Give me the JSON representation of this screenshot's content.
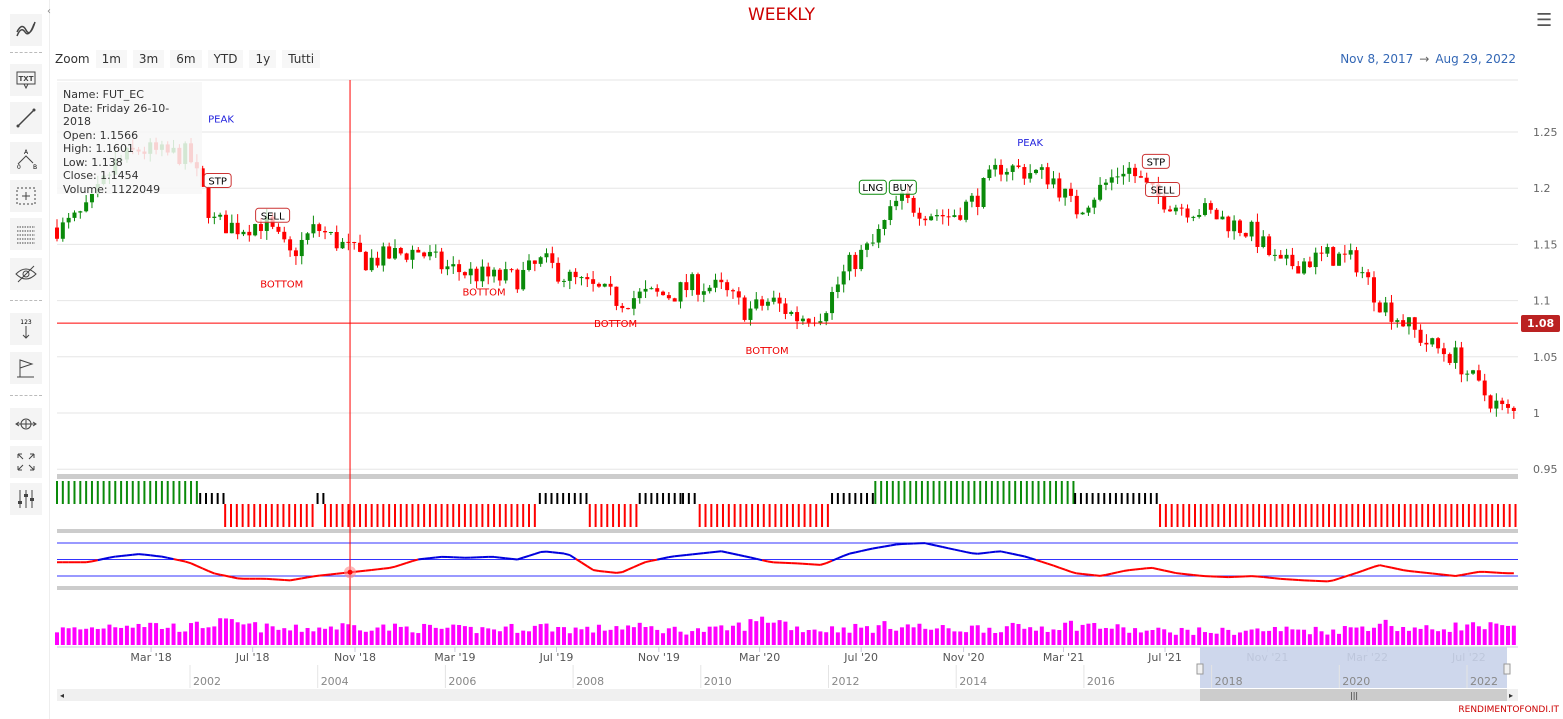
{
  "title": "WEEKLY",
  "toolbar": {
    "icons": [
      "indicators-icon",
      "text-annotation-icon",
      "line-icon",
      "elliott-wave-icon",
      "measure-icon",
      "fibonacci-icon",
      "hide-annotations-icon",
      "vertical-counter-icon",
      "flag-icon",
      "zoom-pan-icon",
      "fullscreen-icon",
      "settings-icon"
    ]
  },
  "zoom": {
    "label": "Zoom",
    "buttons": [
      "1m",
      "3m",
      "6m",
      "YTD",
      "1y",
      "Tutti"
    ]
  },
  "range": {
    "from": "Nov 8, 2017",
    "arrow": "→",
    "to": "Aug 29, 2022"
  },
  "tooltip": {
    "name": "Name: FUT_EC",
    "date": "Date: Friday 26-10-2018",
    "open": "Open: 1.1566",
    "high": "High: 1.1601",
    "low": "Low: 1.138",
    "close": "Close: 1.1454",
    "volume": "Volume: 1122049"
  },
  "crosshair": {
    "date": "2018-10-26",
    "price": 1.08,
    "price_label": "1.08"
  },
  "credit": "RENDIMENTOFONDI.IT",
  "colors": {
    "up": "#0a8a0a",
    "down": "#ff0000",
    "title": "#cc0000",
    "osc_high": "#0000dd",
    "osc_low": "#ff0000",
    "volume": "#ff00ff",
    "navigator_mask": "#c9d3ea"
  },
  "chart_data": {
    "type": "candlestick",
    "ylim": [
      0.95,
      1.27
    ],
    "yticks": [
      "0.95",
      "1",
      "1.05",
      "1.1",
      "1.15",
      "1.2",
      "1.25"
    ],
    "xticks": [
      "Mar '18",
      "Jul '18",
      "Nov '18",
      "Mar '19",
      "Jul '19",
      "Nov '19",
      "Mar '20",
      "Jul '20",
      "Nov '20",
      "Mar '21",
      "Jul '21",
      "Nov '21",
      "Mar '22",
      "Jul '22"
    ],
    "navigator_ticks": [
      "2002",
      "2004",
      "2006",
      "2008",
      "2010",
      "2012",
      "2014",
      "2016",
      "2018",
      "2020",
      "2022"
    ],
    "monthly_close": [
      [
        "2017-11",
        1.165
      ],
      [
        "2017-12",
        1.18
      ],
      [
        "2018-01",
        1.22
      ],
      [
        "2018-02",
        1.235
      ],
      [
        "2018-03",
        1.23
      ],
      [
        "2018-04",
        1.23
      ],
      [
        "2018-05",
        1.17
      ],
      [
        "2018-06",
        1.165
      ],
      [
        "2018-07",
        1.17
      ],
      [
        "2018-08",
        1.14
      ],
      [
        "2018-09",
        1.165
      ],
      [
        "2018-10",
        1.15
      ],
      [
        "2018-11",
        1.135
      ],
      [
        "2018-12",
        1.14
      ],
      [
        "2019-01",
        1.145
      ],
      [
        "2019-02",
        1.13
      ],
      [
        "2019-03",
        1.125
      ],
      [
        "2019-04",
        1.12
      ],
      [
        "2019-05",
        1.12
      ],
      [
        "2019-06",
        1.135
      ],
      [
        "2019-07",
        1.12
      ],
      [
        "2019-08",
        1.11
      ],
      [
        "2019-09",
        1.1
      ],
      [
        "2019-10",
        1.105
      ],
      [
        "2019-11",
        1.105
      ],
      [
        "2019-12",
        1.115
      ],
      [
        "2020-01",
        1.11
      ],
      [
        "2020-02",
        1.09
      ],
      [
        "2020-03",
        1.1
      ],
      [
        "2020-04",
        1.085
      ],
      [
        "2020-05",
        1.09
      ],
      [
        "2020-06",
        1.13
      ],
      [
        "2020-07",
        1.15
      ],
      [
        "2020-08",
        1.19
      ],
      [
        "2020-09",
        1.18
      ],
      [
        "2020-10",
        1.175
      ],
      [
        "2020-11",
        1.19
      ],
      [
        "2020-12",
        1.22
      ],
      [
        "2021-01",
        1.215
      ],
      [
        "2021-02",
        1.21
      ],
      [
        "2021-03",
        1.18
      ],
      [
        "2021-04",
        1.2
      ],
      [
        "2021-05",
        1.22
      ],
      [
        "2021-06",
        1.195
      ],
      [
        "2021-07",
        1.185
      ],
      [
        "2021-08",
        1.18
      ],
      [
        "2021-09",
        1.17
      ],
      [
        "2021-10",
        1.16
      ],
      [
        "2021-11",
        1.13
      ],
      [
        "2021-12",
        1.135
      ],
      [
        "2022-01",
        1.14
      ],
      [
        "2022-02",
        1.135
      ],
      [
        "2022-03",
        1.1
      ],
      [
        "2022-04",
        1.08
      ],
      [
        "2022-05",
        1.06
      ],
      [
        "2022-06",
        1.05
      ],
      [
        "2022-07",
        1.02
      ],
      [
        "2022-08",
        1.0
      ]
    ],
    "annotations": [
      {
        "date": "2018-02-10",
        "price": 1.262,
        "text": "PEAK",
        "style": "peak-faded"
      },
      {
        "date": "2018-05-20",
        "price": 1.206,
        "text": "STP",
        "style": "box"
      },
      {
        "date": "2018-07-25",
        "price": 1.175,
        "text": "SELL",
        "style": "box"
      },
      {
        "date": "2018-08-05",
        "price": 1.115,
        "text": "BOTTOM",
        "style": "bottom"
      },
      {
        "date": "2019-04-05",
        "price": 1.108,
        "text": "BOTTOM",
        "style": "bottom"
      },
      {
        "date": "2019-09-10",
        "price": 1.08,
        "text": "BOTTOM",
        "style": "bottom"
      },
      {
        "date": "2020-03-10",
        "price": 1.056,
        "text": "BOTTOM",
        "style": "bottom"
      },
      {
        "date": "2020-07-15",
        "price": 1.2,
        "text": "LNG",
        "style": "box-green"
      },
      {
        "date": "2020-07-18",
        "price": 1.2,
        "text": "BUY",
        "style": "box-green"
      },
      {
        "date": "2021-01-20",
        "price": 1.241,
        "text": "PEAK",
        "style": "peak"
      },
      {
        "date": "2021-06-20",
        "price": 1.223,
        "text": "STP",
        "style": "box"
      },
      {
        "date": "2021-06-28",
        "price": 1.198,
        "text": "SELL",
        "style": "box"
      }
    ],
    "signals": [
      [
        "2017-11-08",
        "2018-04-29",
        "buy"
      ],
      [
        "2018-04-29",
        "2018-05-29",
        "neutral"
      ],
      [
        "2018-05-29",
        "2018-09-17",
        "sell"
      ],
      [
        "2018-09-17",
        "2018-09-26",
        "neutral"
      ],
      [
        "2018-09-26",
        "2019-06-11",
        "sell"
      ],
      [
        "2019-06-11",
        "2019-08-10",
        "neutral"
      ],
      [
        "2019-08-10",
        "2019-10-09",
        "sell"
      ],
      [
        "2019-10-09",
        "2019-11-30",
        "neutral"
      ],
      [
        "2019-11-30",
        "2019-12-20",
        "neutral"
      ],
      [
        "2019-12-20",
        "2020-05-27",
        "sell"
      ],
      [
        "2020-05-27",
        "2020-07-18",
        "neutral"
      ],
      [
        "2020-07-18",
        "2021-03-15",
        "buy"
      ],
      [
        "2021-03-15",
        "2021-06-25",
        "neutral"
      ],
      [
        "2021-06-25",
        "2022-08-29",
        "sell"
      ]
    ],
    "oscillator": {
      "levels": [
        80,
        50,
        20
      ],
      "ylim": [
        0,
        100
      ],
      "monthly": [
        45,
        45,
        55,
        60,
        55,
        45,
        25,
        15,
        15,
        12,
        20,
        25,
        30,
        35,
        50,
        55,
        53,
        55,
        50,
        65,
        60,
        30,
        25,
        45,
        55,
        60,
        65,
        55,
        45,
        43,
        40,
        60,
        70,
        78,
        80,
        70,
        60,
        65,
        55,
        40,
        25,
        20,
        30,
        35,
        25,
        20,
        18,
        20,
        15,
        12,
        10,
        25,
        40,
        30,
        25,
        20,
        28,
        25
      ]
    },
    "volume_monthly": [
      0.9,
      0.95,
      1.2,
      1.3,
      1.1,
      1.0,
      1.3,
      1.2,
      1.0,
      0.9,
      1.0,
      1.1,
      1.1,
      1.0,
      1.0,
      0.95,
      0.9,
      0.95,
      1.0,
      1.1,
      0.95,
      0.9,
      1.1,
      1.0,
      0.9,
      0.85,
      0.9,
      1.2,
      1.6,
      1.0,
      0.9,
      1.0,
      1.0,
      1.2,
      1.0,
      0.9,
      1.0,
      1.0,
      1.0,
      1.1,
      1.2,
      1.1,
      0.9,
      0.8,
      0.85,
      0.8,
      0.8,
      0.85,
      0.9,
      0.9,
      0.85,
      1.0,
      1.3,
      1.0,
      0.9,
      1.1,
      1.1,
      1.0
    ]
  }
}
